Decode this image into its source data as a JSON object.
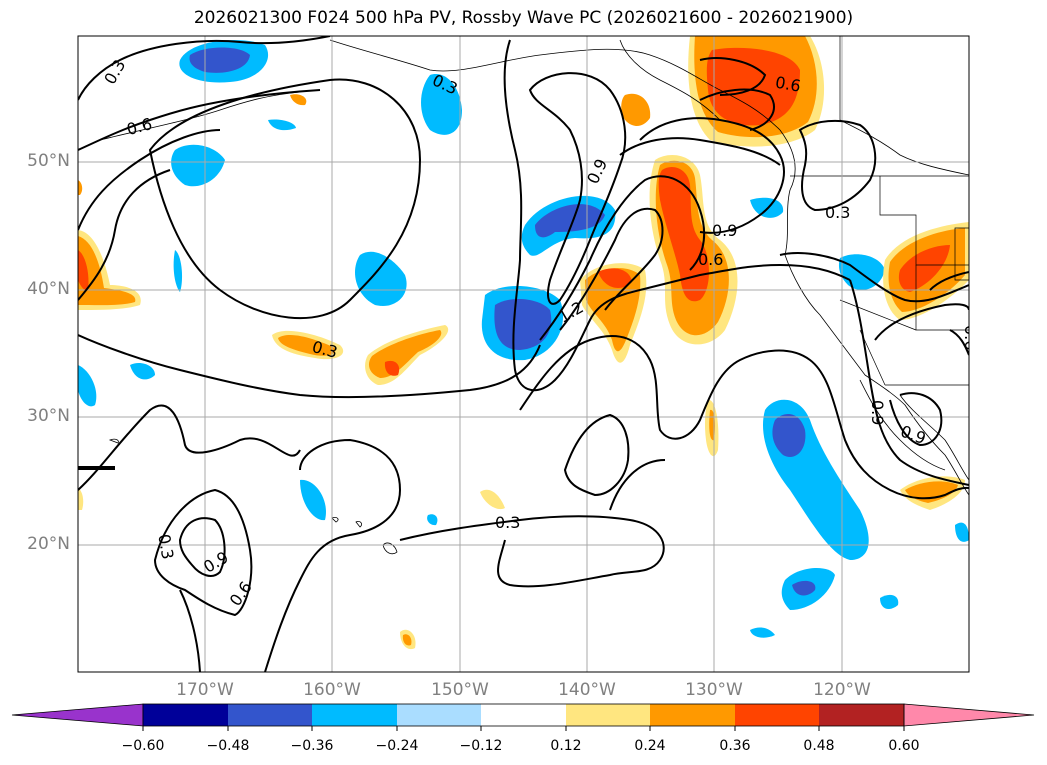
{
  "title": "2026021300 F024 500 hPa PV, Rossby Wave PC (2026021600 - 2026021900)",
  "lat_labels": [
    "50°N",
    "40°N",
    "30°N",
    "20°N"
  ],
  "lon_labels": [
    "170°W",
    "160°W",
    "150°W",
    "140°W",
    "130°W",
    "120°W"
  ],
  "contour_labels": [
    "0.3",
    "0.6",
    "0.3",
    "0.9",
    "0.9",
    "0.6",
    "0.3",
    "1.2",
    "0.3",
    "0.3",
    "0.9",
    "0.6",
    "0.3",
    "0.9",
    "0.6",
    "0.9",
    "0.6",
    "0.3",
    "0.9",
    "0.6"
  ],
  "colorbar": {
    "ticks": [
      "−0.60",
      "−0.48",
      "−0.36",
      "−0.24",
      "−0.12",
      "0.12",
      "0.24",
      "0.36",
      "0.48",
      "0.60"
    ],
    "colors": [
      "#9933cc",
      "#000099",
      "#3355cc",
      "#00bbff",
      "#aaddff",
      "#ffffff",
      "#ffe680",
      "#ff9900",
      "#ff4400",
      "#b22222",
      "#ff88aa"
    ]
  },
  "map": {
    "lat_range": [
      10,
      60
    ],
    "lon_range": [
      -180,
      -110
    ],
    "gridlines": true
  }
}
